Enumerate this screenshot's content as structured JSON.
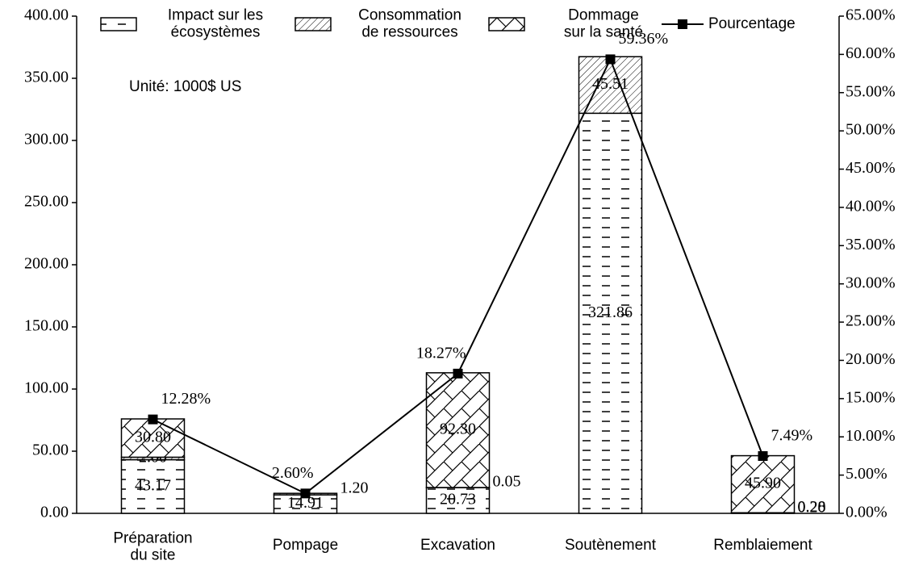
{
  "chart_data": {
    "type": "bar",
    "stacked": true,
    "annotation": "Unité: 1000$ US",
    "categories": [
      "Préparation\ndu site",
      "Pompage",
      "Excavation",
      "Soutènement",
      "Remblaiement"
    ],
    "series": [
      {
        "name": "Impact sur les\nécosystèmes",
        "pattern": "dashes",
        "color": "#000000",
        "values": [
          43.17,
          14.91,
          20.73,
          321.86,
          0.2
        ],
        "value_labels": [
          "43.17",
          "14.91",
          "20.73",
          "321.86",
          "0.20"
        ]
      },
      {
        "name": "Consommation\nde ressources",
        "pattern": "diagonal",
        "color": "#000000",
        "values": [
          2.0,
          1.2,
          0.05,
          45.51,
          0.28
        ],
        "value_labels": [
          "2.00",
          "1.20",
          "0.05",
          "45.51",
          "0.28"
        ]
      },
      {
        "name": "Dommage\nsur la santé",
        "pattern": "cross",
        "color": "#000000",
        "values": [
          30.8,
          null,
          92.3,
          null,
          45.9
        ],
        "value_labels": [
          "30.80",
          null,
          "92.30",
          null,
          "45.90"
        ]
      },
      {
        "name": "Pourcentage",
        "type": "line",
        "axis": "y2",
        "color": "#000000",
        "values": [
          12.28,
          2.6,
          18.27,
          59.36,
          7.49
        ],
        "value_labels": [
          "12.28%",
          "2.60%",
          "18.27%",
          "59.36%",
          "7.49%"
        ]
      }
    ],
    "ylim": [
      0,
      400
    ],
    "yticks": [
      {
        "value": 0,
        "label": "0.00"
      },
      {
        "value": 50,
        "label": "50.00"
      },
      {
        "value": 100,
        "label": "100.00"
      },
      {
        "value": 150,
        "label": "150.00"
      },
      {
        "value": 200,
        "label": "200.00"
      },
      {
        "value": 250,
        "label": "250.00"
      },
      {
        "value": 300,
        "label": "300.00"
      },
      {
        "value": 350,
        "label": "350.00"
      },
      {
        "value": 400,
        "label": "400.00"
      }
    ],
    "y2lim": [
      0,
      65
    ],
    "y2ticks": [
      {
        "value": 0,
        "label": "0.00%"
      },
      {
        "value": 5,
        "label": "5.00%"
      },
      {
        "value": 10,
        "label": "10.00%"
      },
      {
        "value": 15,
        "label": "15.00%"
      },
      {
        "value": 20,
        "label": "20.00%"
      },
      {
        "value": 25,
        "label": "25.00%"
      },
      {
        "value": 30,
        "label": "30.00%"
      },
      {
        "value": 35,
        "label": "35.00%"
      },
      {
        "value": 40,
        "label": "40.00%"
      },
      {
        "value": 45,
        "label": "45.00%"
      },
      {
        "value": 50,
        "label": "50.00%"
      },
      {
        "value": 55,
        "label": "55.00%"
      },
      {
        "value": 60,
        "label": "60.00%"
      },
      {
        "value": 65,
        "label": "65.00%"
      }
    ],
    "grid": false,
    "legend": "top"
  }
}
